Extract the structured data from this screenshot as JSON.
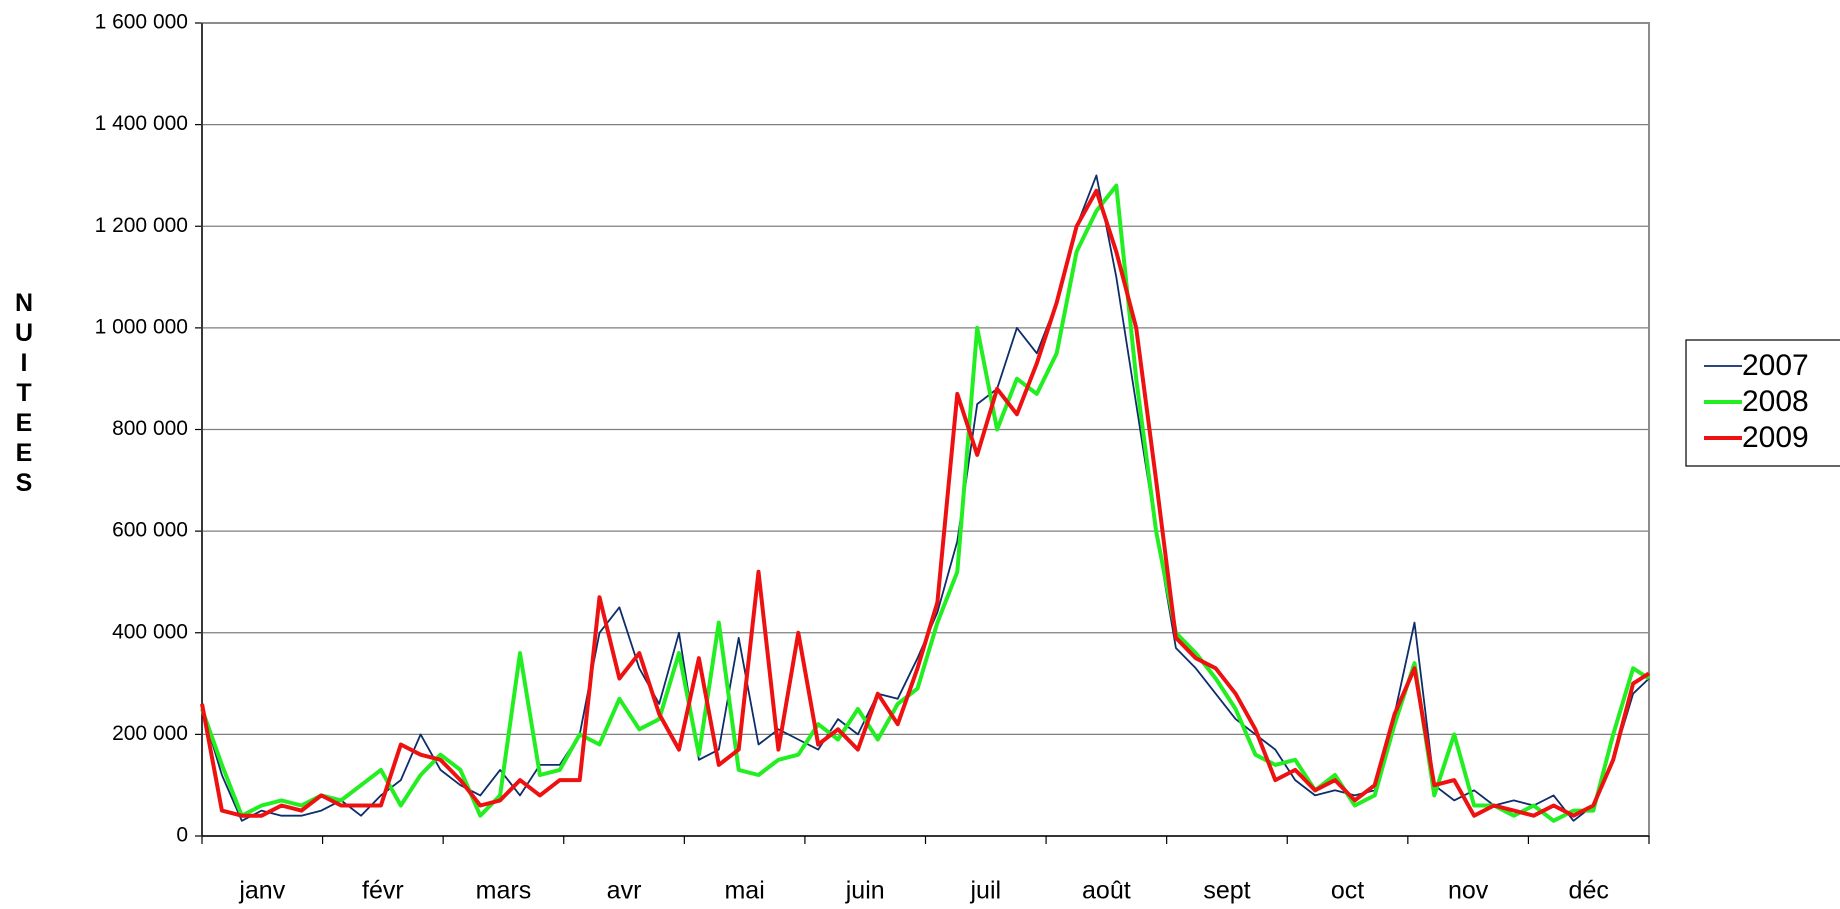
{
  "chart_data": {
    "type": "line",
    "y_label": "NUITEES",
    "categories": [
      "janv",
      "févr",
      "mars",
      "avr",
      "mai",
      "juin",
      "juil",
      "août",
      "sept",
      "oct",
      "nov",
      "déc"
    ],
    "x": [
      1,
      6,
      11,
      16,
      21,
      26,
      31,
      36,
      41,
      46,
      51,
      56,
      61,
      66,
      71,
      76,
      81,
      86,
      91,
      96,
      101,
      106,
      111,
      116,
      121,
      126,
      131,
      136,
      141,
      146,
      151,
      156,
      161,
      166,
      171,
      176,
      181,
      186,
      191,
      196,
      201,
      206,
      211,
      216,
      221,
      226,
      231,
      236,
      241,
      246,
      251,
      256,
      261,
      266,
      271,
      276,
      281,
      286,
      291,
      296,
      301,
      306,
      311,
      316,
      321,
      326,
      331,
      336,
      341,
      346,
      351,
      356,
      361,
      365
    ],
    "xlim": [
      1,
      365
    ],
    "ylim": [
      0,
      1600000
    ],
    "yticks": [
      0,
      {
        "value": 200000,
        "label": "200 000"
      },
      {
        "value": 400000,
        "label": "400 000"
      },
      {
        "value": 600000,
        "label": "600 000"
      },
      {
        "value": 800000,
        "label": "800 000"
      },
      {
        "value": 1000000,
        "label": "1 000 000"
      },
      {
        "value": 1200000,
        "label": "1 200 000"
      },
      {
        "value": 1400000,
        "label": "1 400 000"
      },
      {
        "value": 1600000,
        "label": "1 600 000"
      }
    ],
    "grid": true,
    "legend": "right",
    "series": [
      {
        "name": "2007",
        "color": "#0d2d6b",
        "values": [
          250000,
          120000,
          30000,
          50000,
          40000,
          40000,
          50000,
          70000,
          40000,
          80000,
          110000,
          200000,
          130000,
          100000,
          80000,
          130000,
          80000,
          140000,
          140000,
          200000,
          400000,
          450000,
          330000,
          260000,
          400000,
          150000,
          170000,
          390000,
          180000,
          210000,
          190000,
          170000,
          230000,
          200000,
          280000,
          270000,
          350000,
          440000,
          580000,
          850000,
          880000,
          1000000,
          950000,
          1050000,
          1200000,
          1300000,
          1100000,
          850000,
          600000,
          370000,
          330000,
          280000,
          230000,
          200000,
          170000,
          110000,
          80000,
          90000,
          80000,
          90000,
          240000,
          420000,
          100000,
          70000,
          90000,
          60000,
          70000,
          60000,
          80000,
          30000,
          60000,
          150000,
          280000,
          310000
        ]
      },
      {
        "name": "2008",
        "color": "#22ee22",
        "values": [
          250000,
          140000,
          40000,
          60000,
          70000,
          60000,
          80000,
          70000,
          100000,
          130000,
          60000,
          120000,
          160000,
          130000,
          40000,
          80000,
          360000,
          120000,
          130000,
          200000,
          180000,
          270000,
          210000,
          230000,
          360000,
          160000,
          420000,
          130000,
          120000,
          150000,
          160000,
          220000,
          190000,
          250000,
          190000,
          260000,
          290000,
          420000,
          520000,
          1000000,
          800000,
          900000,
          870000,
          950000,
          1150000,
          1230000,
          1280000,
          900000,
          600000,
          400000,
          360000,
          310000,
          250000,
          160000,
          140000,
          150000,
          90000,
          120000,
          60000,
          80000,
          220000,
          340000,
          80000,
          200000,
          60000,
          60000,
          40000,
          60000,
          30000,
          50000,
          50000,
          200000,
          330000,
          310000
        ]
      },
      {
        "name": "2009",
        "color": "#ee1111",
        "values": [
          260000,
          50000,
          40000,
          40000,
          60000,
          50000,
          80000,
          60000,
          60000,
          60000,
          180000,
          160000,
          150000,
          110000,
          60000,
          70000,
          110000,
          80000,
          110000,
          110000,
          470000,
          310000,
          360000,
          240000,
          170000,
          350000,
          140000,
          170000,
          520000,
          170000,
          400000,
          180000,
          210000,
          170000,
          280000,
          220000,
          330000,
          460000,
          870000,
          750000,
          880000,
          830000,
          930000,
          1050000,
          1200000,
          1270000,
          1150000,
          1000000,
          700000,
          390000,
          350000,
          330000,
          280000,
          210000,
          110000,
          130000,
          90000,
          110000,
          70000,
          100000,
          240000,
          330000,
          100000,
          110000,
          40000,
          60000,
          50000,
          40000,
          60000,
          40000,
          60000,
          150000,
          300000,
          320000
        ]
      }
    ]
  }
}
